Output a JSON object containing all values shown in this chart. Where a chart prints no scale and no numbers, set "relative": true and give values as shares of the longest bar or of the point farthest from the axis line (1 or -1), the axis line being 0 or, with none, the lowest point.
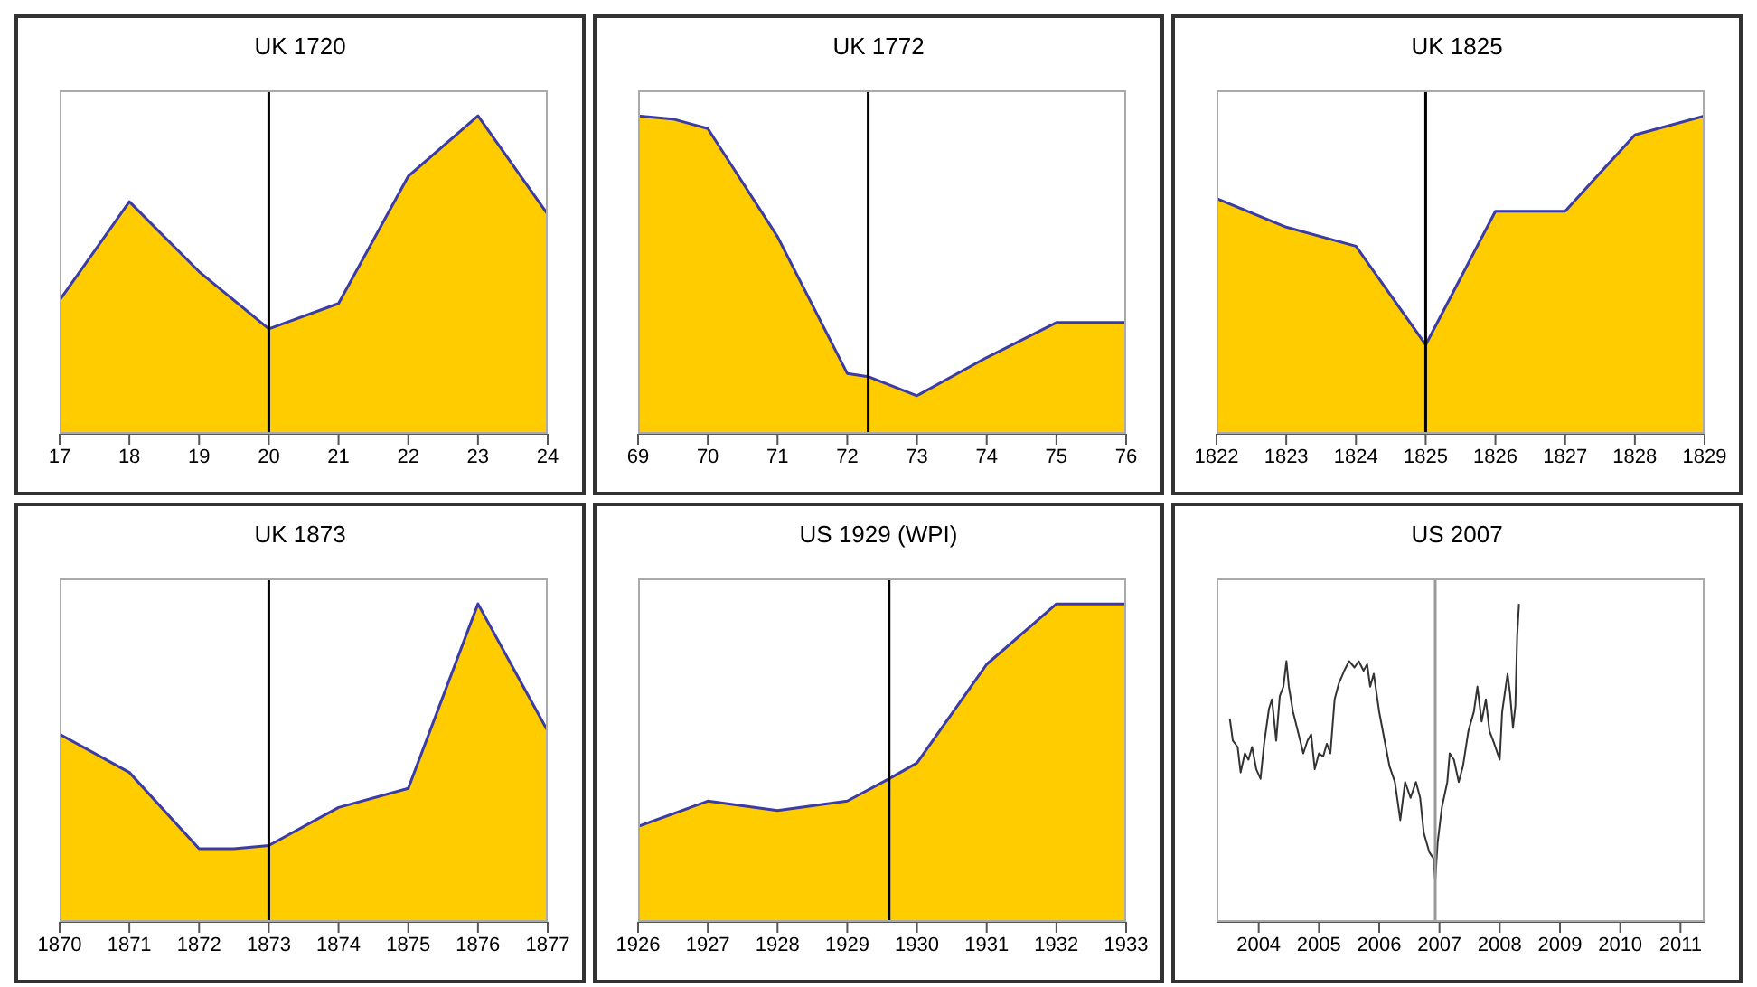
{
  "chart_data": [
    {
      "type": "area",
      "title": "UK 1720",
      "relative": true,
      "x": [
        17,
        18,
        19,
        20,
        21,
        22,
        23,
        24
      ],
      "series": [
        {
          "type": "area",
          "color": "#ffcc00",
          "values": [
            0.42,
            0.73,
            0.51,
            0.33,
            0.41,
            0.81,
            1,
            0.69
          ]
        },
        {
          "type": "line",
          "color": "#3b3ba8",
          "values": [
            0.42,
            0.73,
            0.51,
            0.33,
            0.41,
            0.81,
            1,
            0.69
          ]
        }
      ],
      "xlim": [
        17,
        24
      ],
      "xticks": [
        17,
        18,
        19,
        20,
        21,
        22,
        23,
        24
      ],
      "ref_lines": [
        {
          "axis": "x",
          "value": 20,
          "color": "#000000"
        }
      ]
    },
    {
      "type": "area",
      "title": "UK 1772",
      "relative": true,
      "x": [
        69,
        69.5,
        70,
        71,
        72,
        72.3,
        73,
        74,
        75,
        76
      ],
      "series": [
        {
          "type": "area",
          "color": "#ffcc00",
          "values": [
            1,
            0.99,
            0.96,
            0.62,
            0.19,
            0.18,
            0.12,
            0.24,
            0.35,
            0.35
          ]
        },
        {
          "type": "line",
          "color": "#3b3ba8",
          "values": [
            1,
            0.99,
            0.96,
            0.62,
            0.19,
            0.18,
            0.12,
            0.24,
            0.35,
            0.35
          ]
        }
      ],
      "xlim": [
        69,
        76
      ],
      "xticks": [
        69,
        70,
        71,
        72,
        73,
        74,
        75,
        76
      ],
      "ref_lines": [
        {
          "axis": "x",
          "value": 72.3,
          "color": "#000000"
        }
      ]
    },
    {
      "type": "area",
      "title": "UK 1825",
      "relative": true,
      "x": [
        1822,
        1823,
        1824,
        1825,
        1826,
        1827,
        1828,
        1829
      ],
      "series": [
        {
          "type": "area",
          "color": "#ffcc00",
          "values": [
            0.74,
            0.65,
            0.59,
            0.28,
            0.7,
            0.7,
            0.94,
            1
          ]
        },
        {
          "type": "line",
          "color": "#3b3ba8",
          "values": [
            0.74,
            0.65,
            0.59,
            0.28,
            0.7,
            0.7,
            0.94,
            1
          ]
        }
      ],
      "xlim": [
        1822,
        1829
      ],
      "xticks": [
        1822,
        1823,
        1824,
        1825,
        1826,
        1827,
        1828,
        1829
      ],
      "ref_lines": [
        {
          "axis": "x",
          "value": 1825,
          "color": "#000000"
        }
      ]
    },
    {
      "type": "area",
      "title": "UK 1873",
      "relative": true,
      "x": [
        1870,
        1871,
        1872,
        1872.5,
        1873,
        1874,
        1875,
        1876,
        1877
      ],
      "series": [
        {
          "type": "area",
          "color": "#ffcc00",
          "values": [
            0.59,
            0.47,
            0.23,
            0.23,
            0.24,
            0.36,
            0.42,
            1,
            0.6
          ]
        },
        {
          "type": "line",
          "color": "#3b3ba8",
          "values": [
            0.59,
            0.47,
            0.23,
            0.23,
            0.24,
            0.36,
            0.42,
            1,
            0.6
          ]
        }
      ],
      "xlim": [
        1870,
        1877
      ],
      "xticks": [
        1870,
        1871,
        1872,
        1873,
        1874,
        1875,
        1876,
        1877
      ],
      "ref_lines": [
        {
          "axis": "x",
          "value": 1873,
          "color": "#000000"
        }
      ]
    },
    {
      "type": "area",
      "title": "US 1929 (WPI)",
      "relative": true,
      "x": [
        1926,
        1927,
        1928,
        1929,
        1929.6,
        1930,
        1931,
        1932,
        1933
      ],
      "series": [
        {
          "type": "area",
          "color": "#ffcc00",
          "values": [
            0.3,
            0.38,
            0.35,
            0.38,
            0.45,
            0.5,
            0.81,
            1,
            1
          ]
        },
        {
          "type": "line",
          "color": "#3b3ba8",
          "values": [
            0.3,
            0.38,
            0.35,
            0.38,
            0.45,
            0.5,
            0.81,
            1,
            1
          ]
        }
      ],
      "xlim": [
        1926,
        1933
      ],
      "xticks": [
        1926,
        1927,
        1928,
        1929,
        1930,
        1931,
        1932,
        1933
      ],
      "ref_lines": [
        {
          "axis": "x",
          "value": 1929.6,
          "color": "#000000"
        }
      ]
    },
    {
      "type": "line",
      "title": "US 2007",
      "relative": true,
      "x": [
        2003.52,
        2003.57,
        2003.65,
        2003.7,
        2003.77,
        2003.83,
        2003.89,
        2003.96,
        2004.03,
        2004.09,
        2004.17,
        2004.22,
        2004.29,
        2004.35,
        2004.41,
        2004.46,
        2004.5,
        2004.57,
        2004.65,
        2004.74,
        2004.81,
        2004.87,
        2004.93,
        2005,
        2005.07,
        2005.13,
        2005.19,
        2005.26,
        2005.33,
        2005.42,
        2005.5,
        2005.59,
        2005.66,
        2005.74,
        2005.8,
        2005.85,
        2005.91,
        2006,
        2006.09,
        2006.17,
        2006.26,
        2006.35,
        2006.43,
        2006.52,
        2006.61,
        2006.68,
        2006.74,
        2006.83,
        2006.9,
        2006.93,
        2006.97,
        2007.04,
        2007.13,
        2007.17,
        2007.24,
        2007.32,
        2007.39,
        2007.48,
        2007.57,
        2007.63,
        2007.7,
        2007.77,
        2007.83,
        2007.91,
        2008,
        2008.04,
        2008.13,
        2008.17,
        2008.22,
        2008.26,
        2008.29,
        2008.32
      ],
      "series": [
        {
          "type": "line",
          "color": "#333333",
          "values": [
            0.64,
            0.57,
            0.55,
            0.47,
            0.53,
            0.51,
            0.55,
            0.48,
            0.45,
            0.56,
            0.67,
            0.7,
            0.57,
            0.71,
            0.74,
            0.82,
            0.74,
            0.66,
            0.6,
            0.53,
            0.57,
            0.59,
            0.48,
            0.53,
            0.52,
            0.56,
            0.53,
            0.7,
            0.75,
            0.79,
            0.82,
            0.8,
            0.82,
            0.79,
            0.81,
            0.74,
            0.78,
            0.66,
            0.57,
            0.49,
            0.44,
            0.32,
            0.44,
            0.39,
            0.44,
            0.39,
            0.28,
            0.22,
            0.2,
            0.13,
            0.25,
            0.36,
            0.44,
            0.53,
            0.51,
            0.44,
            0.49,
            0.6,
            0.66,
            0.74,
            0.63,
            0.7,
            0.6,
            0.56,
            0.51,
            0.66,
            0.78,
            0.72,
            0.61,
            0.68,
            0.9,
            1
          ]
        }
      ],
      "xlim": [
        2003.3,
        2011.4
      ],
      "xticks": [
        2004,
        2005,
        2006,
        2007,
        2008,
        2009,
        2010,
        2011
      ],
      "ref_lines": [
        {
          "axis": "x",
          "value": 2006.93,
          "color": "#999999"
        }
      ]
    }
  ]
}
